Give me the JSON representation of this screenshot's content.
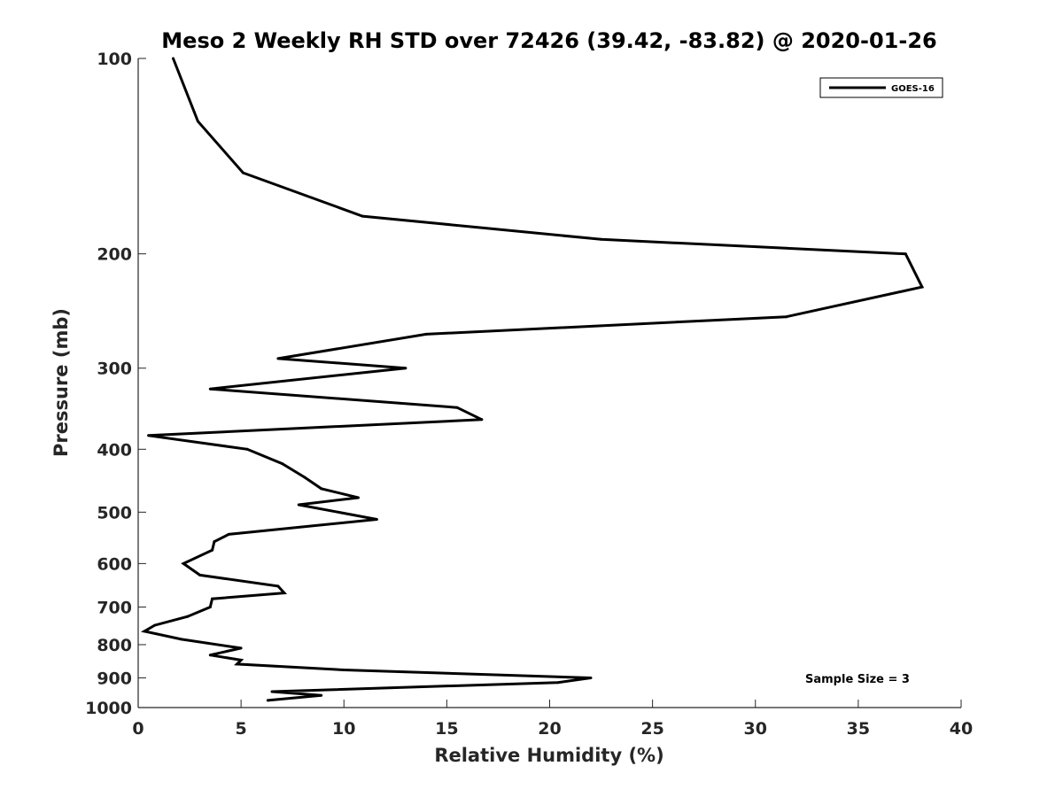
{
  "chart_data": {
    "type": "line",
    "title": "Meso 2 Weekly RH STD over 72426 (39.42, -83.82) @ 2020-01-26",
    "xlabel": "Relative Humidity (%)",
    "ylabel": "Pressure (mb)",
    "xlim": [
      0,
      40
    ],
    "ylim": [
      100,
      1000
    ],
    "y_scale": "log",
    "y_reversed": true,
    "x_ticks": [
      "0",
      "5",
      "10",
      "15",
      "20",
      "25",
      "30",
      "35",
      "40"
    ],
    "y_ticks": [
      "100",
      "200",
      "300",
      "400",
      "500",
      "600",
      "700",
      "800",
      "900",
      "1000"
    ],
    "grid": false,
    "legend_position": "top-right",
    "annotation": "Sample Size = 3",
    "series": [
      {
        "name": "GOES-16",
        "color": "#000000",
        "points": [
          [
            1.7,
            100
          ],
          [
            2.9,
            125
          ],
          [
            5.1,
            150
          ],
          [
            10.9,
            175
          ],
          [
            22.5,
            190
          ],
          [
            37.3,
            200
          ],
          [
            38.1,
            225
          ],
          [
            31.5,
            250
          ],
          [
            14.0,
            266
          ],
          [
            6.8,
            290
          ],
          [
            13.0,
            300
          ],
          [
            3.5,
            323
          ],
          [
            15.5,
            345
          ],
          [
            16.7,
            360
          ],
          [
            0.5,
            381
          ],
          [
            5.3,
            400
          ],
          [
            7.0,
            421
          ],
          [
            8.1,
            442
          ],
          [
            8.9,
            460
          ],
          [
            10.7,
            475
          ],
          [
            7.8,
            487
          ],
          [
            11.6,
            513
          ],
          [
            4.4,
            541
          ],
          [
            3.7,
            555
          ],
          [
            3.6,
            572
          ],
          [
            2.2,
            600
          ],
          [
            3.0,
            625
          ],
          [
            6.8,
            650
          ],
          [
            7.1,
            666
          ],
          [
            3.6,
            680
          ],
          [
            3.5,
            700
          ],
          [
            2.4,
            724
          ],
          [
            0.8,
            747
          ],
          [
            0.3,
            763
          ],
          [
            2.1,
            785
          ],
          [
            5.0,
            810
          ],
          [
            3.5,
            830
          ],
          [
            5.0,
            845
          ],
          [
            4.8,
            857
          ],
          [
            10.0,
            875
          ],
          [
            22.0,
            900
          ],
          [
            20.4,
            915
          ],
          [
            6.5,
            945
          ],
          [
            8.9,
            958
          ],
          [
            6.3,
            975
          ]
        ]
      }
    ]
  }
}
